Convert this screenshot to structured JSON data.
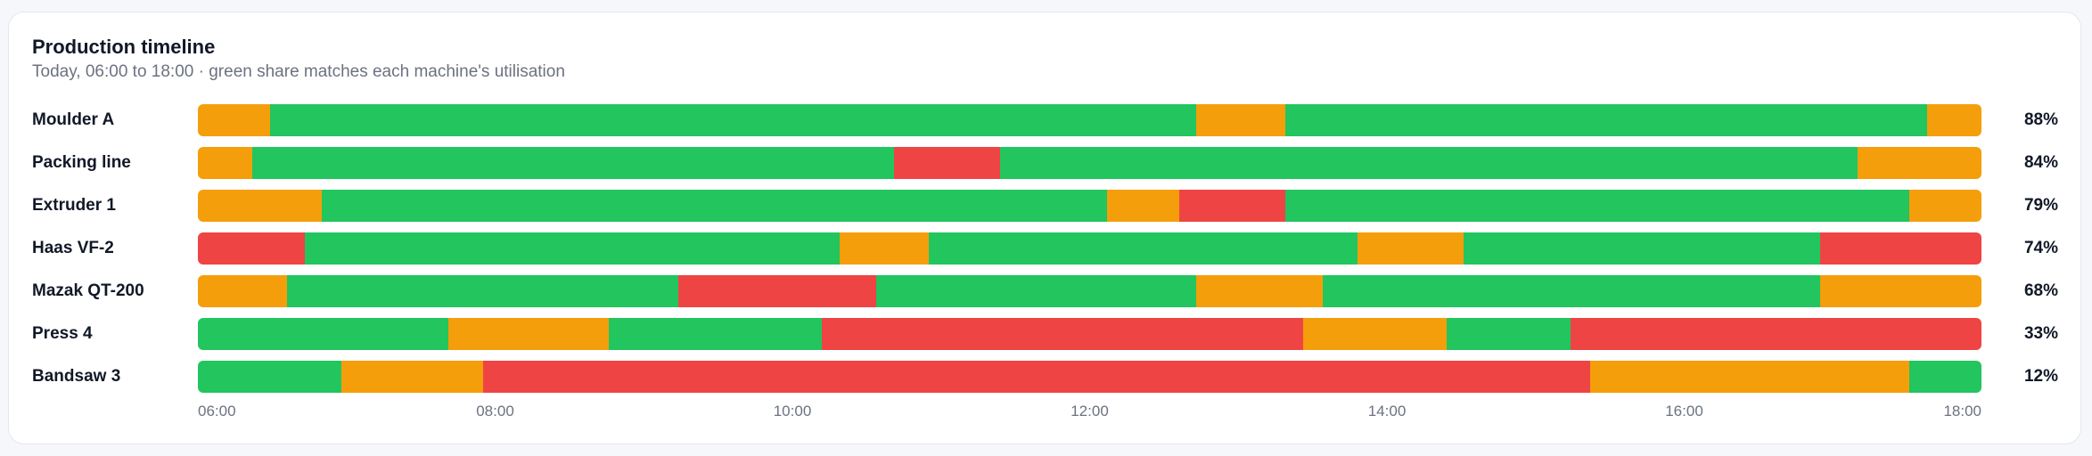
{
  "colors": {
    "running": "#22c55e",
    "idle": "#f59e0b",
    "down": "#ef4444"
  },
  "chart_data": {
    "type": "timeline",
    "title": "Production timeline",
    "subtitle": "Today, 06:00 to 18:00 · green share matches each machine's utilisation",
    "x_range": [
      "06:00",
      "18:00"
    ],
    "x_ticks": [
      "06:00",
      "08:00",
      "10:00",
      "12:00",
      "14:00",
      "16:00",
      "18:00"
    ],
    "machines": [
      {
        "name": "Moulder A",
        "utilisation": "88%",
        "segments": [
          {
            "start": "06:00",
            "end": "06:29",
            "state": "idle"
          },
          {
            "start": "06:29",
            "end": "12:43",
            "state": "running"
          },
          {
            "start": "12:43",
            "end": "13:19",
            "state": "idle"
          },
          {
            "start": "13:19",
            "end": "17:38",
            "state": "running"
          },
          {
            "start": "17:38",
            "end": "18:00",
            "state": "idle"
          }
        ]
      },
      {
        "name": "Packing line",
        "utilisation": "84%",
        "segments": [
          {
            "start": "06:00",
            "end": "06:22",
            "state": "idle"
          },
          {
            "start": "06:22",
            "end": "10:41",
            "state": "running"
          },
          {
            "start": "10:41",
            "end": "11:24",
            "state": "down"
          },
          {
            "start": "11:24",
            "end": "17:10",
            "state": "running"
          },
          {
            "start": "17:10",
            "end": "18:00",
            "state": "idle"
          }
        ]
      },
      {
        "name": "Extruder 1",
        "utilisation": "79%",
        "segments": [
          {
            "start": "06:00",
            "end": "06:50",
            "state": "idle"
          },
          {
            "start": "06:50",
            "end": "12:07",
            "state": "running"
          },
          {
            "start": "12:07",
            "end": "12:36",
            "state": "idle"
          },
          {
            "start": "12:36",
            "end": "13:19",
            "state": "down"
          },
          {
            "start": "13:19",
            "end": "17:31",
            "state": "running"
          },
          {
            "start": "17:31",
            "end": "18:00",
            "state": "idle"
          }
        ]
      },
      {
        "name": "Haas VF-2",
        "utilisation": "74%",
        "segments": [
          {
            "start": "06:00",
            "end": "06:43",
            "state": "down"
          },
          {
            "start": "06:43",
            "end": "10:19",
            "state": "running"
          },
          {
            "start": "10:19",
            "end": "10:55",
            "state": "idle"
          },
          {
            "start": "10:55",
            "end": "13:48",
            "state": "running"
          },
          {
            "start": "13:48",
            "end": "14:31",
            "state": "idle"
          },
          {
            "start": "14:31",
            "end": "16:55",
            "state": "running"
          },
          {
            "start": "16:55",
            "end": "18:00",
            "state": "down"
          }
        ]
      },
      {
        "name": "Mazak QT-200",
        "utilisation": "68%",
        "segments": [
          {
            "start": "06:00",
            "end": "06:36",
            "state": "idle"
          },
          {
            "start": "06:36",
            "end": "09:14",
            "state": "running"
          },
          {
            "start": "09:14",
            "end": "10:34",
            "state": "down"
          },
          {
            "start": "10:34",
            "end": "12:43",
            "state": "running"
          },
          {
            "start": "12:43",
            "end": "13:34",
            "state": "idle"
          },
          {
            "start": "13:34",
            "end": "16:55",
            "state": "running"
          },
          {
            "start": "16:55",
            "end": "18:00",
            "state": "idle"
          }
        ]
      },
      {
        "name": "Press 4",
        "utilisation": "33%",
        "segments": [
          {
            "start": "06:00",
            "end": "07:41",
            "state": "running"
          },
          {
            "start": "07:41",
            "end": "08:46",
            "state": "idle"
          },
          {
            "start": "08:46",
            "end": "10:12",
            "state": "running"
          },
          {
            "start": "10:12",
            "end": "13:26",
            "state": "down"
          },
          {
            "start": "13:26",
            "end": "14:24",
            "state": "idle"
          },
          {
            "start": "14:24",
            "end": "15:14",
            "state": "running"
          },
          {
            "start": "15:14",
            "end": "18:00",
            "state": "down"
          }
        ]
      },
      {
        "name": "Bandsaw 3",
        "utilisation": "12%",
        "segments": [
          {
            "start": "06:00",
            "end": "06:58",
            "state": "running"
          },
          {
            "start": "06:58",
            "end": "07:55",
            "state": "idle"
          },
          {
            "start": "07:55",
            "end": "15:22",
            "state": "down"
          },
          {
            "start": "15:22",
            "end": "17:31",
            "state": "idle"
          },
          {
            "start": "17:31",
            "end": "18:00",
            "state": "running"
          }
        ]
      }
    ]
  }
}
